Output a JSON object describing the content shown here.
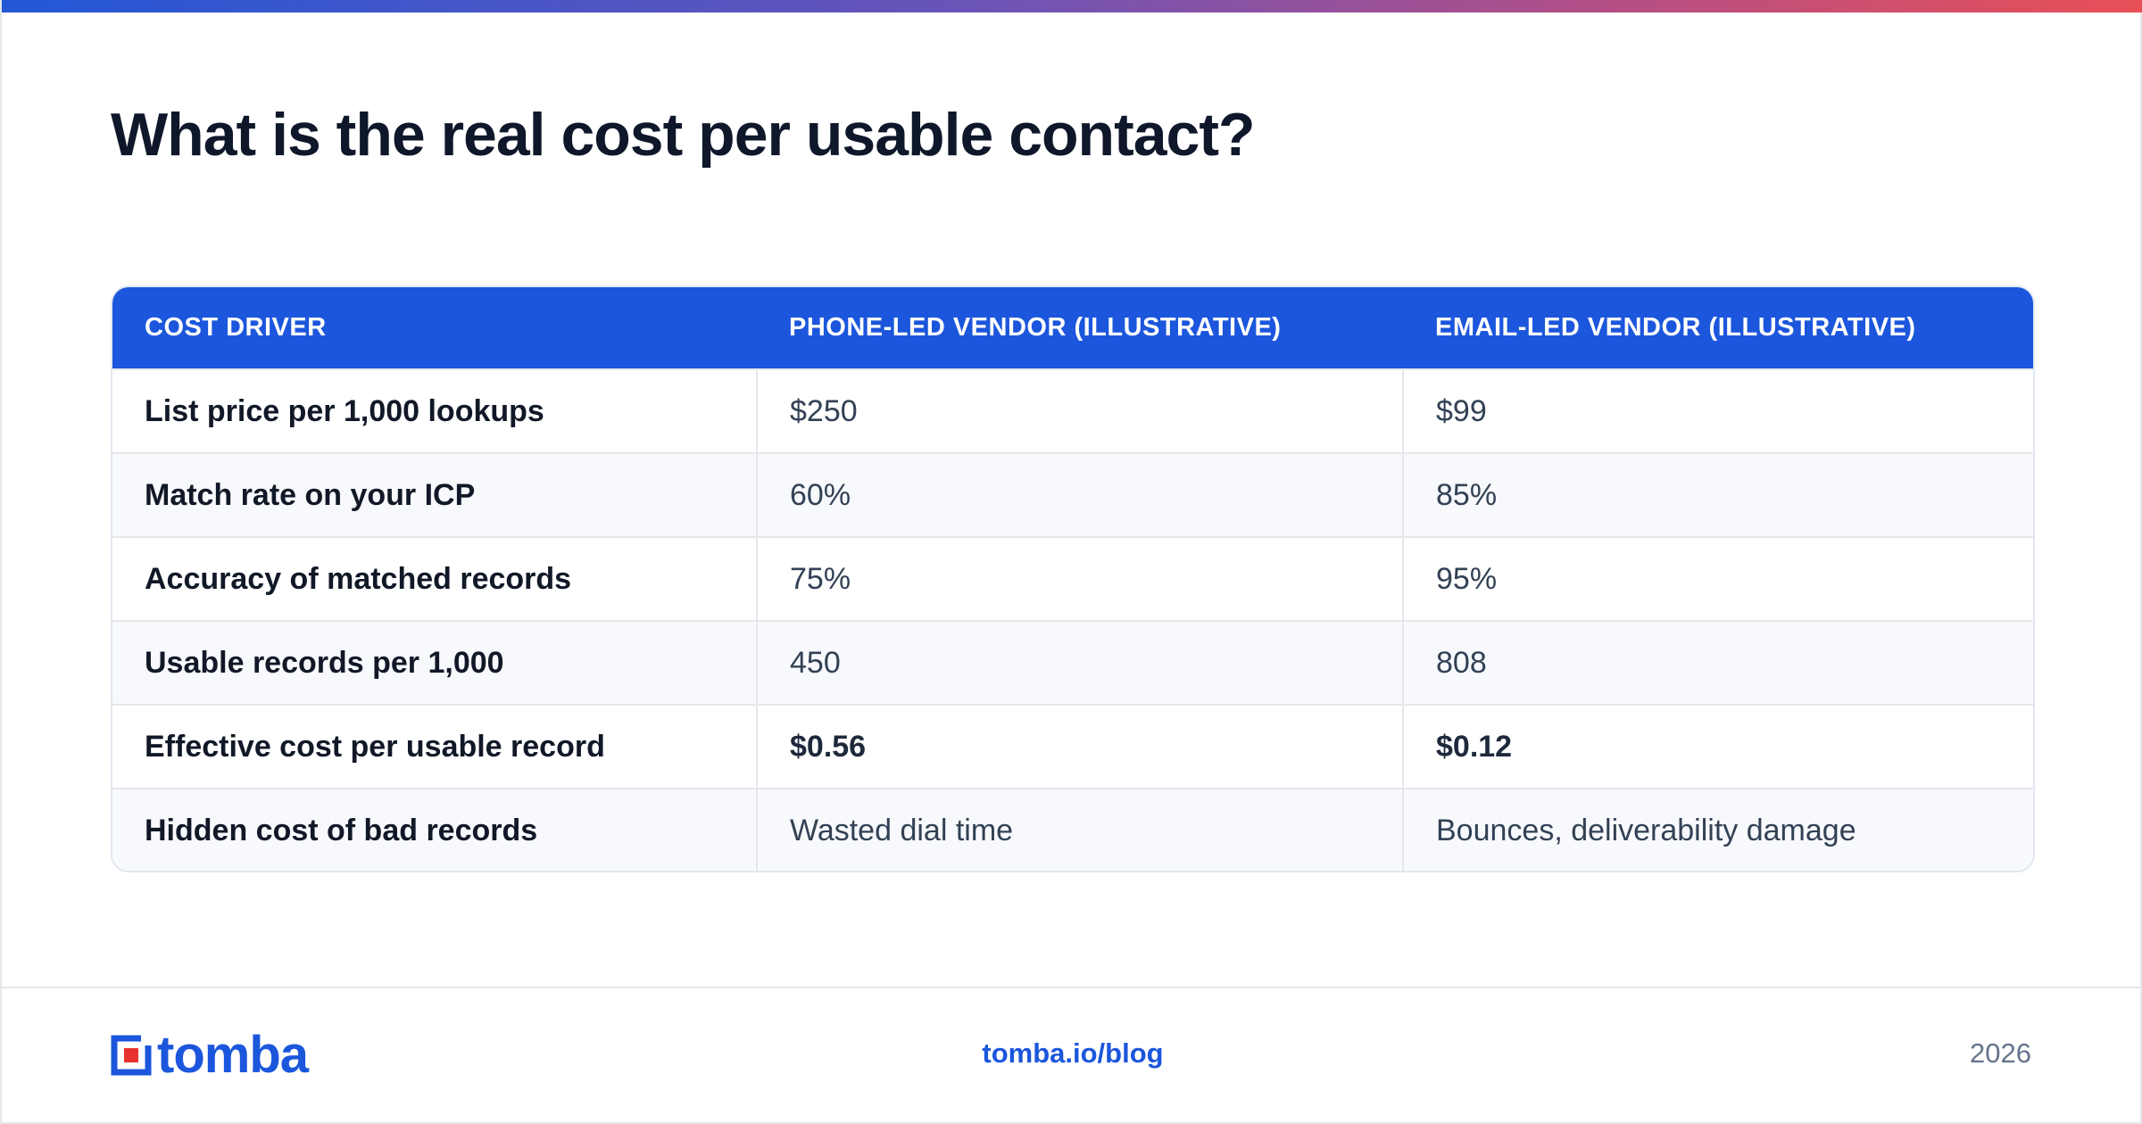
{
  "title": "What is the real cost per usable contact?",
  "table": {
    "headers": [
      "COST DRIVER",
      "PHONE-LED VENDOR (ILLUSTRATIVE)",
      "EMAIL-LED VENDOR (ILLUSTRATIVE)"
    ],
    "rows": [
      {
        "driver": "List price per 1,000 lookups",
        "phone": "$250",
        "email": "$99"
      },
      {
        "driver": "Match rate on your ICP",
        "phone": "60%",
        "email": "85%"
      },
      {
        "driver": "Accuracy of matched records",
        "phone": "75%",
        "email": "95%"
      },
      {
        "driver": "Usable records per 1,000",
        "phone": "450",
        "email": "808"
      },
      {
        "driver": "Effective cost per usable record",
        "phone": "$0.56",
        "email": "$0.12"
      },
      {
        "driver": "Hidden cost of bad records",
        "phone": "Wasted dial time",
        "email": "Bounces, deliverability damage"
      }
    ]
  },
  "footer": {
    "logo_text": "tomba",
    "logo_icon": "tomba-logo-icon",
    "url": "tomba.io/blog",
    "year": "2026"
  },
  "colors": {
    "brand_blue": "#1b56dc",
    "logo_red": "#e8312f",
    "gradient": [
      "#2257d6",
      "#6a54b8",
      "#b44f86",
      "#e84f55"
    ]
  }
}
